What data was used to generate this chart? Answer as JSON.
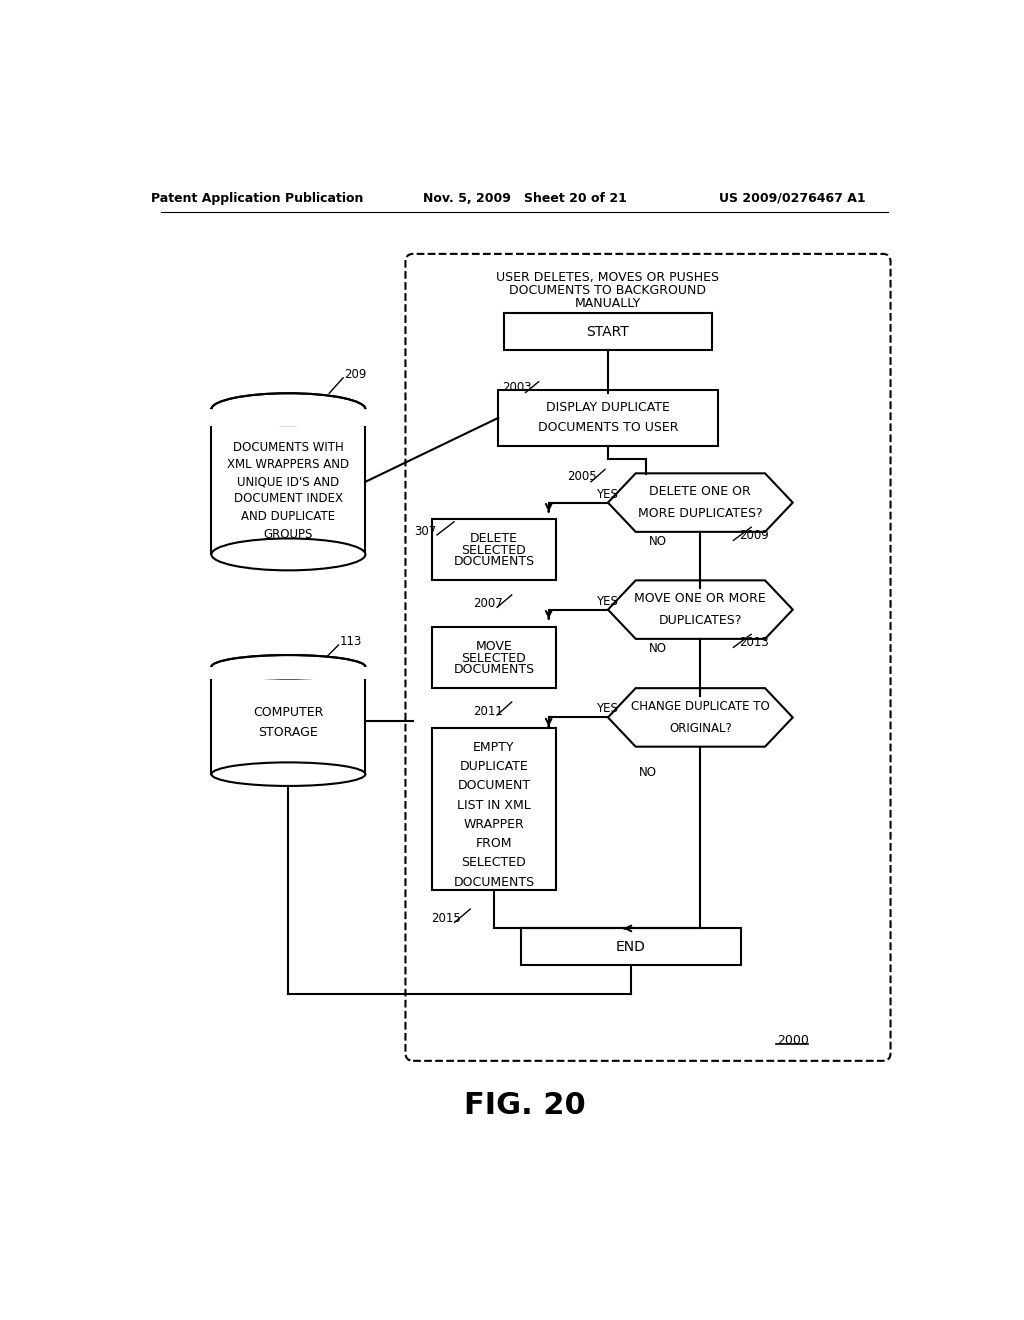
{
  "header_left": "Patent Application Publication",
  "header_mid": "Nov. 5, 2009   Sheet 20 of 21",
  "header_right": "US 2009/0276467 A1",
  "bg_color": "#ffffff",
  "figure_label": "FIG. 20",
  "diagram_label": "2000"
}
